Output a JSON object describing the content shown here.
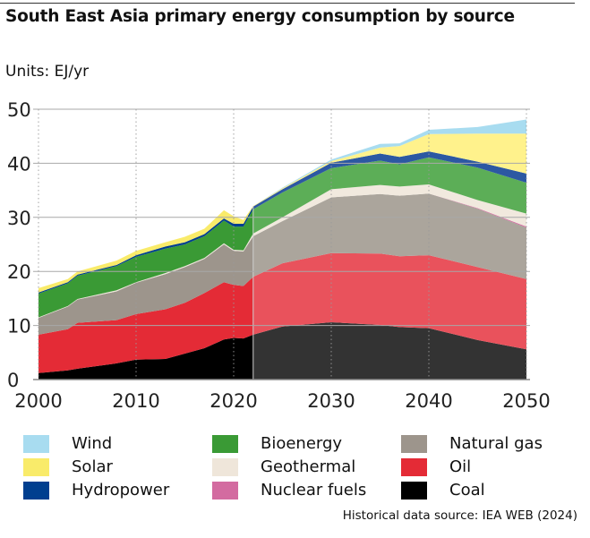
{
  "chart_data": {
    "type": "area",
    "stacked": true,
    "title": "South East Asia primary energy consumption by source",
    "units_label": "Units: EJ/yr",
    "xlabel": "",
    "ylabel": "EJ/yr",
    "xlim": [
      2000,
      2050
    ],
    "ylim": [
      0,
      50
    ],
    "x_ticks": [
      "2000",
      "2010",
      "2020",
      "2030",
      "2040",
      "2050"
    ],
    "y_ticks": [
      "0",
      "10",
      "20",
      "30",
      "40",
      "50"
    ],
    "grid": "horizontal solid, vertical dotted at decades",
    "projection_start": 2022,
    "x": [
      2000,
      2003,
      2004,
      2008,
      2010,
      2013,
      2015,
      2017,
      2019,
      2020,
      2021,
      2022,
      2025,
      2030,
      2035,
      2037,
      2040,
      2045,
      2050
    ],
    "series": [
      {
        "name": "Coal",
        "color": "#000000",
        "proj_color": "#333333",
        "values": [
          1.2,
          1.7,
          2.0,
          3.0,
          3.7,
          3.8,
          4.8,
          5.8,
          7.4,
          7.7,
          7.6,
          8.3,
          9.8,
          10.6,
          10.1,
          9.7,
          9.5,
          7.3,
          5.6
        ]
      },
      {
        "name": "Oil",
        "color": "#e42b36",
        "proj_color": "#e9525c",
        "values": [
          7.1,
          7.6,
          8.5,
          8.0,
          8.4,
          9.2,
          9.4,
          10.2,
          10.6,
          9.8,
          9.7,
          10.7,
          11.7,
          12.8,
          13.2,
          13.1,
          13.5,
          13.5,
          13.0
        ]
      },
      {
        "name": "Natural gas",
        "color": "#9d958c",
        "proj_color": "#aba59c",
        "values": [
          3.1,
          4.2,
          4.3,
          5.3,
          5.8,
          6.5,
          6.6,
          6.3,
          7.0,
          6.3,
          6.4,
          7.5,
          7.8,
          10.3,
          11.0,
          11.2,
          11.4,
          10.8,
          9.5
        ]
      },
      {
        "name": "Nuclear fuels",
        "color": "#d36ba0",
        "proj_color": "#d36ba0",
        "values": [
          0,
          0,
          0,
          0,
          0,
          0,
          0,
          0,
          0,
          0,
          0,
          0,
          0,
          0,
          0,
          0,
          0,
          0.1,
          0.2
        ]
      },
      {
        "name": "Geothermal",
        "color": "#efe6da",
        "proj_color": "#f1e9de",
        "values": [
          0.1,
          0.1,
          0.1,
          0.2,
          0.1,
          0.2,
          0.2,
          0.2,
          0.2,
          0.2,
          0.2,
          0.5,
          0.7,
          1.5,
          1.7,
          1.7,
          1.7,
          1.5,
          2.4
        ]
      },
      {
        "name": "Bioenergy",
        "color": "#3a9a35",
        "proj_color": "#5cae57",
        "values": [
          4.4,
          4.2,
          4.3,
          4.5,
          4.7,
          4.5,
          4.0,
          4.0,
          4.2,
          4.3,
          4.4,
          4.5,
          4.6,
          3.9,
          4.5,
          4.1,
          5.0,
          6.0,
          5.7
        ]
      },
      {
        "name": "Hydropower",
        "color": "#003f8f",
        "proj_color": "#2c58a2",
        "values": [
          0.2,
          0.2,
          0.2,
          0.2,
          0.3,
          0.4,
          0.4,
          0.4,
          0.4,
          0.5,
          0.5,
          0.5,
          0.6,
          1.0,
          1.3,
          1.4,
          1.1,
          1.1,
          1.7
        ]
      },
      {
        "name": "Solar",
        "color": "#f9eb6a",
        "proj_color": "#fff28c",
        "values": [
          0.8,
          0.6,
          0.6,
          0.8,
          0.8,
          0.8,
          1.0,
          1.0,
          1.5,
          1.4,
          0.7,
          0.1,
          0.2,
          0.3,
          1.1,
          2.0,
          3.2,
          5.2,
          7.4
        ]
      },
      {
        "name": "Wind",
        "color": "#a8dcf0",
        "proj_color": "#a8dcf0",
        "values": [
          0,
          0,
          0,
          0,
          0,
          0,
          0,
          0,
          0,
          0,
          0,
          0,
          0.1,
          0.3,
          0.7,
          0.5,
          0.8,
          1.2,
          2.6
        ]
      }
    ],
    "legend": {
      "placement": "bottom",
      "columns": [
        [
          "Wind",
          "Solar",
          "Hydropower"
        ],
        [
          "Bioenergy",
          "Geothermal",
          "Nuclear fuels"
        ],
        [
          "Natural gas",
          "Oil",
          "Coal"
        ]
      ]
    },
    "source": "Historical data source: IEA WEB (2024)"
  }
}
